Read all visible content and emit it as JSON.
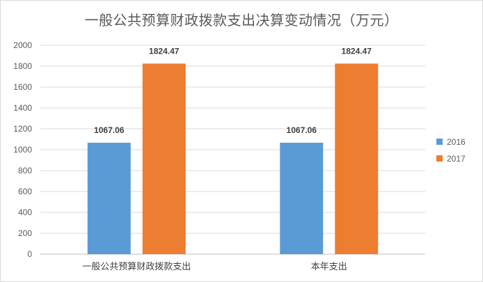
{
  "chart_data": {
    "type": "bar",
    "title": "一般公共预算财政拨款支出决算变动情况（万元）",
    "categories": [
      "一般公共预算财政拨款支出",
      "本年支出"
    ],
    "series": [
      {
        "name": "2016",
        "values": [
          1067.06,
          1067.06
        ],
        "color": "#5b9bd5"
      },
      {
        "name": "2017",
        "values": [
          1824.47,
          1824.47
        ],
        "color": "#ed7d31"
      }
    ],
    "data_labels": [
      [
        "1067.06",
        "1067.06"
      ],
      [
        "1824.47",
        "1824.47"
      ]
    ],
    "ylim": [
      0,
      2000
    ],
    "yticks": [
      0,
      200,
      400,
      600,
      800,
      1000,
      1200,
      1400,
      1600,
      1800,
      2000
    ],
    "grid": true,
    "legend_position": "right",
    "xlabel": "",
    "ylabel": ""
  }
}
